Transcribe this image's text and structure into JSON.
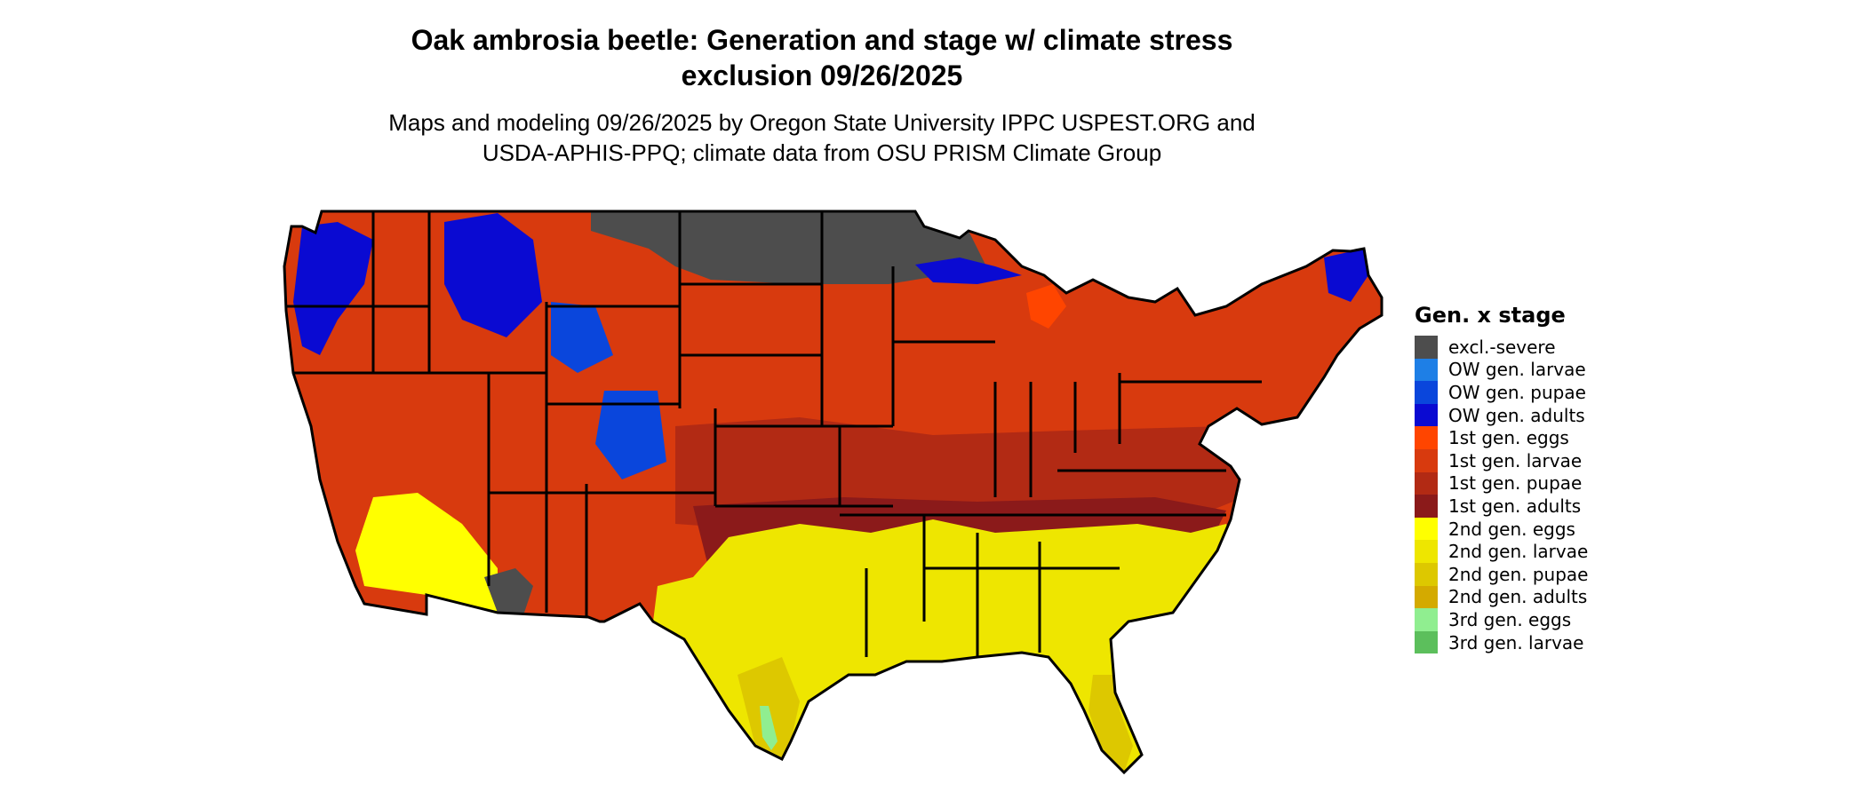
{
  "title": {
    "line1": "Oak ambrosia beetle: Generation and stage w/ climate stress",
    "line2": "exclusion 09/26/2025"
  },
  "subtitle": {
    "line1": "Maps and modeling 09/26/2025 by Oregon State University IPPC USPEST.ORG and",
    "line2": "USDA-APHIS-PPQ; climate data from OSU PRISM Climate Group"
  },
  "legend": {
    "title": "Gen. x stage",
    "items": [
      {
        "label": "excl.-severe",
        "color": "#4d4d4d"
      },
      {
        "label": "OW gen. larvae",
        "color": "#1e7fe6"
      },
      {
        "label": "OW gen. pupae",
        "color": "#0a46dc"
      },
      {
        "label": "OW gen. adults",
        "color": "#0a0ad2"
      },
      {
        "label": "1st gen. eggs",
        "color": "#ff4500"
      },
      {
        "label": "1st gen. larvae",
        "color": "#d83a0e"
      },
      {
        "label": "1st gen. pupae",
        "color": "#b22a14"
      },
      {
        "label": "1st gen. adults",
        "color": "#8b1a1a"
      },
      {
        "label": "2nd gen. eggs",
        "color": "#ffff00"
      },
      {
        "label": "2nd gen. larvae",
        "color": "#eee600"
      },
      {
        "label": "2nd gen. pupae",
        "color": "#ddc800"
      },
      {
        "label": "2nd gen. adults",
        "color": "#d4aa00"
      },
      {
        "label": "3rd gen. eggs",
        "color": "#90ee90"
      },
      {
        "label": "3rd gen. larvae",
        "color": "#5cbf5c"
      }
    ]
  }
}
